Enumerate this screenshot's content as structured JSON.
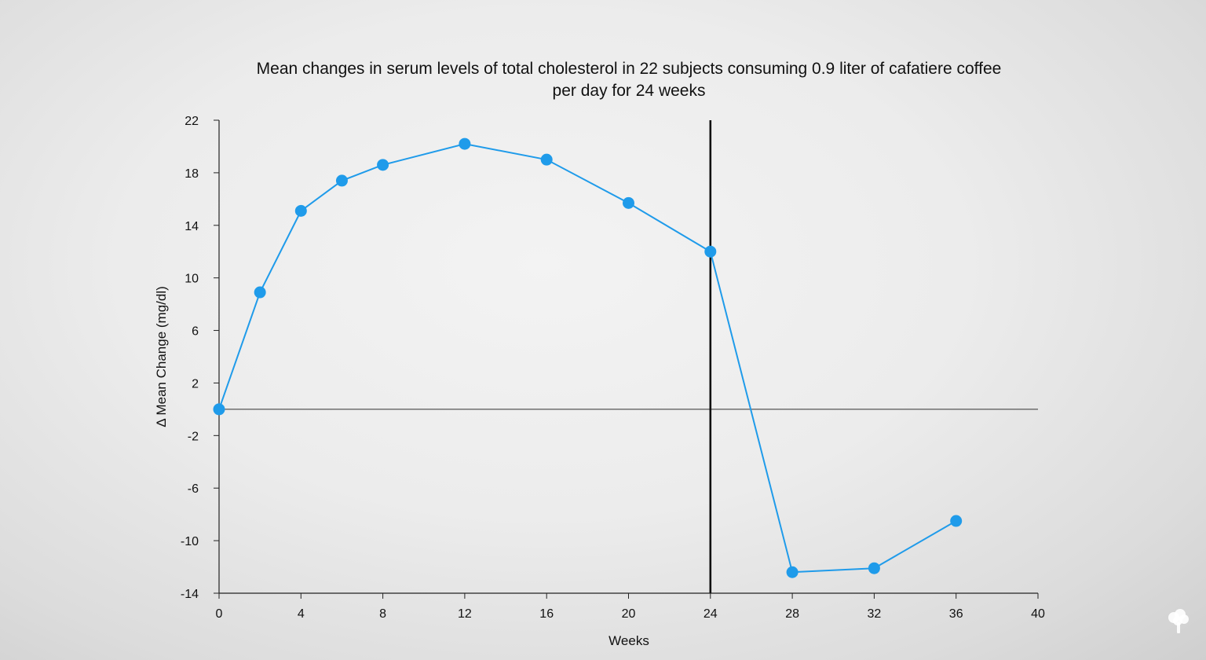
{
  "chart_data": {
    "type": "line",
    "title_lines": [
      "Mean changes in serum levels of total cholesterol in 22 subjects consuming 0.9 liter of cafatiere coffee",
      "per day for 24 weeks"
    ],
    "xlabel": "Weeks",
    "ylabel": "Δ Mean Change (mg/dl)",
    "xlim": [
      0,
      40
    ],
    "ylim": [
      -14,
      22
    ],
    "x_ticks": [
      0,
      4,
      8,
      12,
      16,
      20,
      24,
      28,
      32,
      36,
      40
    ],
    "y_ticks": [
      22,
      18,
      14,
      10,
      6,
      2,
      -2,
      -6,
      -10,
      -14
    ],
    "reference_line_y": 0,
    "vertical_marker_x": 24,
    "series": [
      {
        "x": [
          0,
          2,
          4,
          6,
          8,
          12,
          16,
          20,
          24,
          28,
          32,
          36
        ],
        "y": [
          0,
          8.9,
          15.1,
          17.4,
          18.6,
          20.2,
          19.0,
          15.7,
          12.0,
          -12.4,
          -12.1,
          -8.5
        ],
        "color": "#1f9bea"
      }
    ],
    "grid": false
  },
  "colors": {
    "series": "#1f9bea",
    "axis": "#222222",
    "zero_line": "#555555",
    "marker_line": "#111111"
  },
  "brand_icon": "tree-logo-icon"
}
